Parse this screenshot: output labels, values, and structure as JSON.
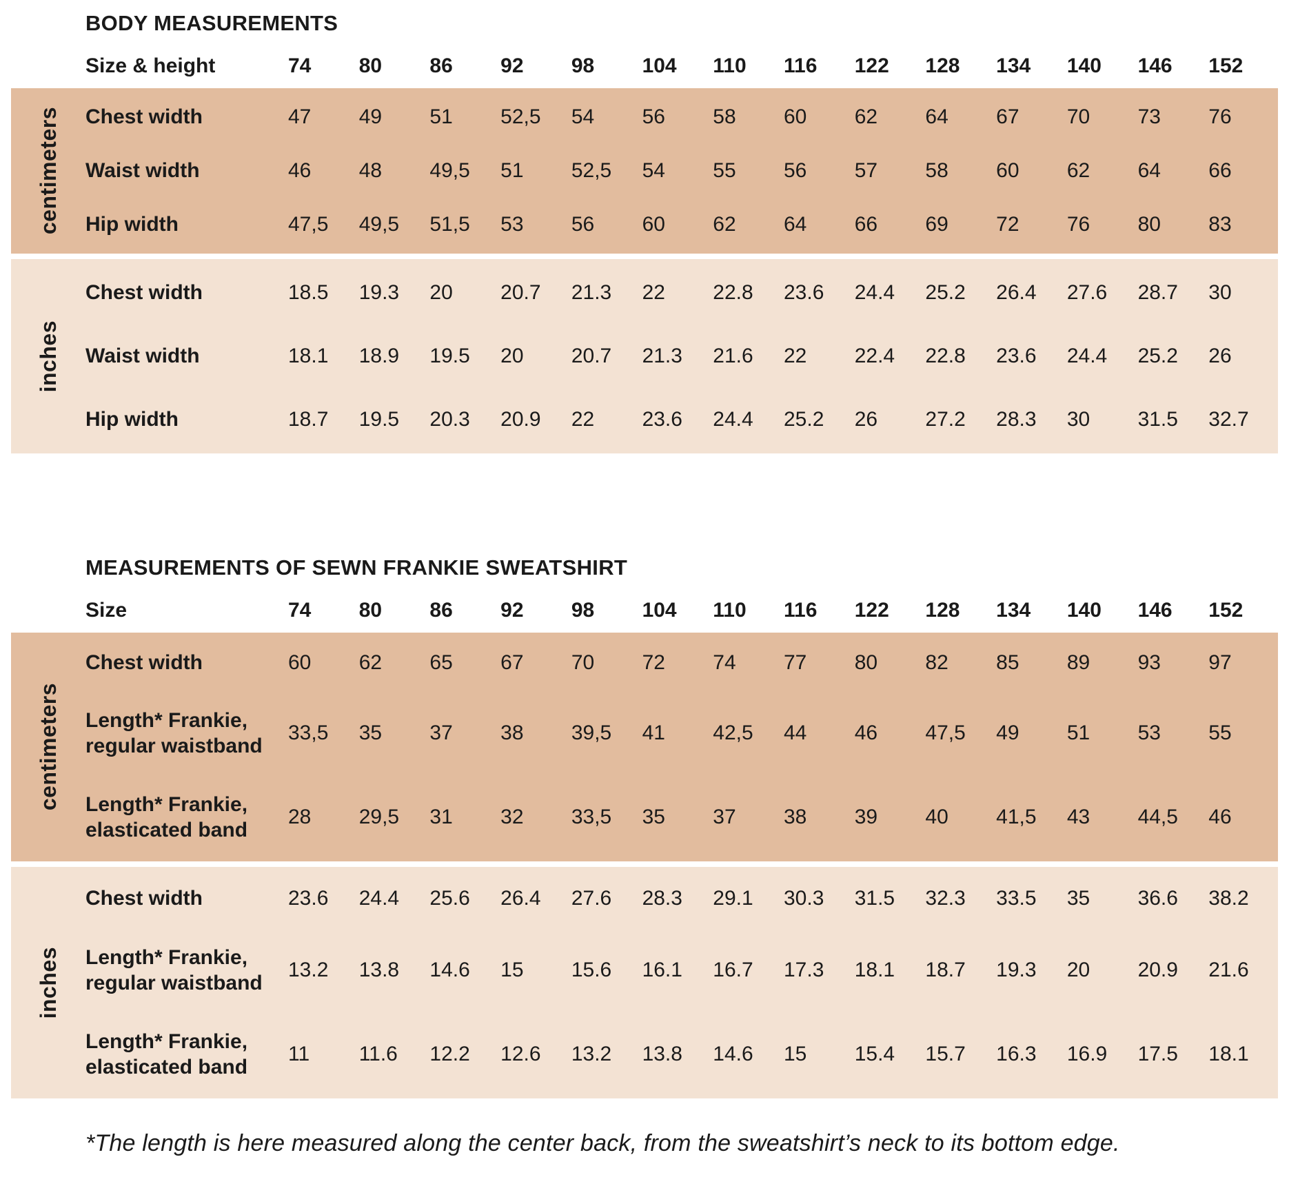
{
  "colors": {
    "cm_block": "#e2bc9e",
    "inch_block": "#f3e2d3",
    "text": "#1a1a1a",
    "background": "#ffffff"
  },
  "sizes": [
    "74",
    "80",
    "86",
    "92",
    "98",
    "104",
    "110",
    "116",
    "122",
    "128",
    "134",
    "140",
    "146",
    "152"
  ],
  "body_table": {
    "title": "BODY MEASUREMENTS",
    "header_label": "Size & height",
    "cm": {
      "unit": "centimeters",
      "rows": [
        {
          "label": "Chest width",
          "values": [
            "47",
            "49",
            "51",
            "52,5",
            "54",
            "56",
            "58",
            "60",
            "62",
            "64",
            "67",
            "70",
            "73",
            "76"
          ]
        },
        {
          "label": "Waist width",
          "values": [
            "46",
            "48",
            "49,5",
            "51",
            "52,5",
            "54",
            "55",
            "56",
            "57",
            "58",
            "60",
            "62",
            "64",
            "66"
          ]
        },
        {
          "label": "Hip width",
          "values": [
            "47,5",
            "49,5",
            "51,5",
            "53",
            "56",
            "60",
            "62",
            "64",
            "66",
            "69",
            "72",
            "76",
            "80",
            "83"
          ]
        }
      ]
    },
    "inches": {
      "unit": "inches",
      "rows": [
        {
          "label": "Chest width",
          "values": [
            "18.5",
            "19.3",
            "20",
            "20.7",
            "21.3",
            "22",
            "22.8",
            "23.6",
            "24.4",
            "25.2",
            "26.4",
            "27.6",
            "28.7",
            "30"
          ]
        },
        {
          "label": "Waist width",
          "values": [
            "18.1",
            "18.9",
            "19.5",
            "20",
            "20.7",
            "21.3",
            "21.6",
            "22",
            "22.4",
            "22.8",
            "23.6",
            "24.4",
            "25.2",
            "26"
          ]
        },
        {
          "label": "Hip width",
          "values": [
            "18.7",
            "19.5",
            "20.3",
            "20.9",
            "22",
            "23.6",
            "24.4",
            "25.2",
            "26",
            "27.2",
            "28.3",
            "30",
            "31.5",
            "32.7"
          ]
        }
      ]
    }
  },
  "sweatshirt_table": {
    "title": "MEASUREMENTS OF SEWN FRANKIE SWEATSHIRT",
    "header_label": "Size",
    "cm": {
      "unit": "centimeters",
      "rows": [
        {
          "label": "Chest width",
          "values": [
            "60",
            "62",
            "65",
            "67",
            "70",
            "72",
            "74",
            "77",
            "80",
            "82",
            "85",
            "89",
            "93",
            "97"
          ]
        },
        {
          "label": "Length* Frankie,\nregular waistband",
          "values": [
            "33,5",
            "35",
            "37",
            "38",
            "39,5",
            "41",
            "42,5",
            "44",
            "46",
            "47,5",
            "49",
            "51",
            "53",
            "55"
          ]
        },
        {
          "label": "Length* Frankie,\nelasticated band",
          "values": [
            "28",
            "29,5",
            "31",
            "32",
            "33,5",
            "35",
            "37",
            "38",
            "39",
            "40",
            "41,5",
            "43",
            "44,5",
            "46"
          ]
        }
      ]
    },
    "inches": {
      "unit": "inches",
      "rows": [
        {
          "label": "Chest width",
          "values": [
            "23.6",
            "24.4",
            "25.6",
            "26.4",
            "27.6",
            "28.3",
            "29.1",
            "30.3",
            "31.5",
            "32.3",
            "33.5",
            "35",
            "36.6",
            "38.2"
          ]
        },
        {
          "label": "Length* Frankie,\nregular waistband",
          "values": [
            "13.2",
            "13.8",
            "14.6",
            "15",
            "15.6",
            "16.1",
            "16.7",
            "17.3",
            "18.1",
            "18.7",
            "19.3",
            "20",
            "20.9",
            "21.6"
          ]
        },
        {
          "label": "Length* Frankie,\nelasticated band",
          "values": [
            "11",
            "11.6",
            "12.2",
            "12.6",
            "13.2",
            "13.8",
            "14.6",
            "15",
            "15.4",
            "15.7",
            "16.3",
            "16.9",
            "17.5",
            "18.1"
          ]
        }
      ]
    }
  },
  "page": {
    "footnote": "*The length is here measured along the center back, from the sweatshirt’s neck to its bottom edge."
  }
}
